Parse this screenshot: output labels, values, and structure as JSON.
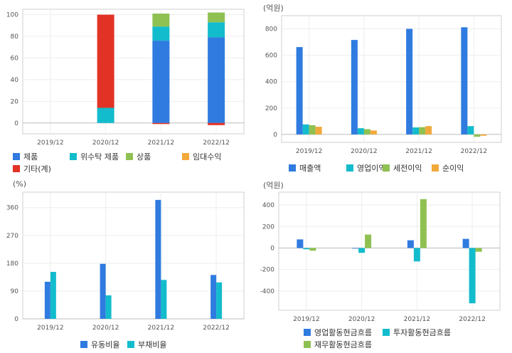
{
  "colors": {
    "blue": "#2f7be0",
    "cyan": "#13bccc",
    "green": "#8fc152",
    "orange": "#f2a93b",
    "red": "#e23226"
  },
  "chart_data": [
    {
      "id": "product-mix",
      "type": "bar",
      "stacked": true,
      "categories": [
        "2019/12",
        "2020/12",
        "2021/12",
        "2022/12"
      ],
      "ylim": [
        -10,
        105
      ],
      "yticks": [
        0,
        20,
        40,
        60,
        80,
        100
      ],
      "unit": "",
      "grid": true,
      "legend_position": "bottom",
      "series": [
        {
          "name": "제품",
          "color": "#2f7be0",
          "values": [
            null,
            0,
            76,
            79
          ]
        },
        {
          "name": "위수탁 제품",
          "color": "#13bccc",
          "values": [
            null,
            14,
            13,
            14
          ]
        },
        {
          "name": "상품",
          "color": "#8fc152",
          "values": [
            null,
            0,
            12,
            9
          ]
        },
        {
          "name": "임대수익",
          "color": "#f2a93b",
          "values": [
            null,
            0,
            0,
            0
          ]
        },
        {
          "name": "기타(계)",
          "color": "#e23226",
          "values": [
            null,
            86,
            -1,
            -2
          ]
        }
      ]
    },
    {
      "id": "income",
      "type": "bar",
      "categories": [
        "2019/12",
        "2020/12",
        "2021/12",
        "2022/12"
      ],
      "ylim": [
        -60,
        900
      ],
      "yticks": [
        0,
        200,
        400,
        600,
        800
      ],
      "unit": "(억원)",
      "grid": true,
      "legend_position": "bottom",
      "series": [
        {
          "name": "매출액",
          "color": "#2f7be0",
          "values": [
            662,
            716,
            800,
            812
          ]
        },
        {
          "name": "영업이익",
          "color": "#13bccc",
          "values": [
            76,
            47,
            53,
            63
          ]
        },
        {
          "name": "세전이익",
          "color": "#8fc152",
          "values": [
            70,
            40,
            55,
            -18
          ]
        },
        {
          "name": "순이익",
          "color": "#f2a93b",
          "values": [
            58,
            30,
            63,
            -10
          ]
        }
      ]
    },
    {
      "id": "ratios",
      "type": "bar",
      "categories": [
        "2019/12",
        "2020/12",
        "2021/12",
        "2022/12"
      ],
      "ylim": [
        0,
        410
      ],
      "yticks": [
        0,
        90,
        180,
        270,
        360
      ],
      "unit": "(%)",
      "grid": true,
      "legend_position": "bottom",
      "series": [
        {
          "name": "유동비율",
          "color": "#2f7be0",
          "values": [
            120,
            178,
            385,
            142
          ]
        },
        {
          "name": "부채비율",
          "color": "#13bccc",
          "values": [
            152,
            76,
            126,
            118
          ]
        }
      ]
    },
    {
      "id": "cashflow",
      "type": "bar",
      "categories": [
        "2019/12",
        "2020/12",
        "2021/12",
        "2022/12"
      ],
      "ylim": [
        -580,
        520
      ],
      "yticks": [
        -400,
        -200,
        0,
        200,
        400
      ],
      "unit": "(억원)",
      "grid": true,
      "legend_position": "bottom",
      "series": [
        {
          "name": "영업활동현금흐름",
          "color": "#2f7be0",
          "values": [
            80,
            -5,
            72,
            85
          ]
        },
        {
          "name": "투자활동현금흐름",
          "color": "#13bccc",
          "values": [
            -12,
            -45,
            -125,
            -515
          ]
        },
        {
          "name": "재무활동현금흐름",
          "color": "#8fc152",
          "values": [
            -25,
            125,
            455,
            -35
          ]
        }
      ]
    }
  ]
}
